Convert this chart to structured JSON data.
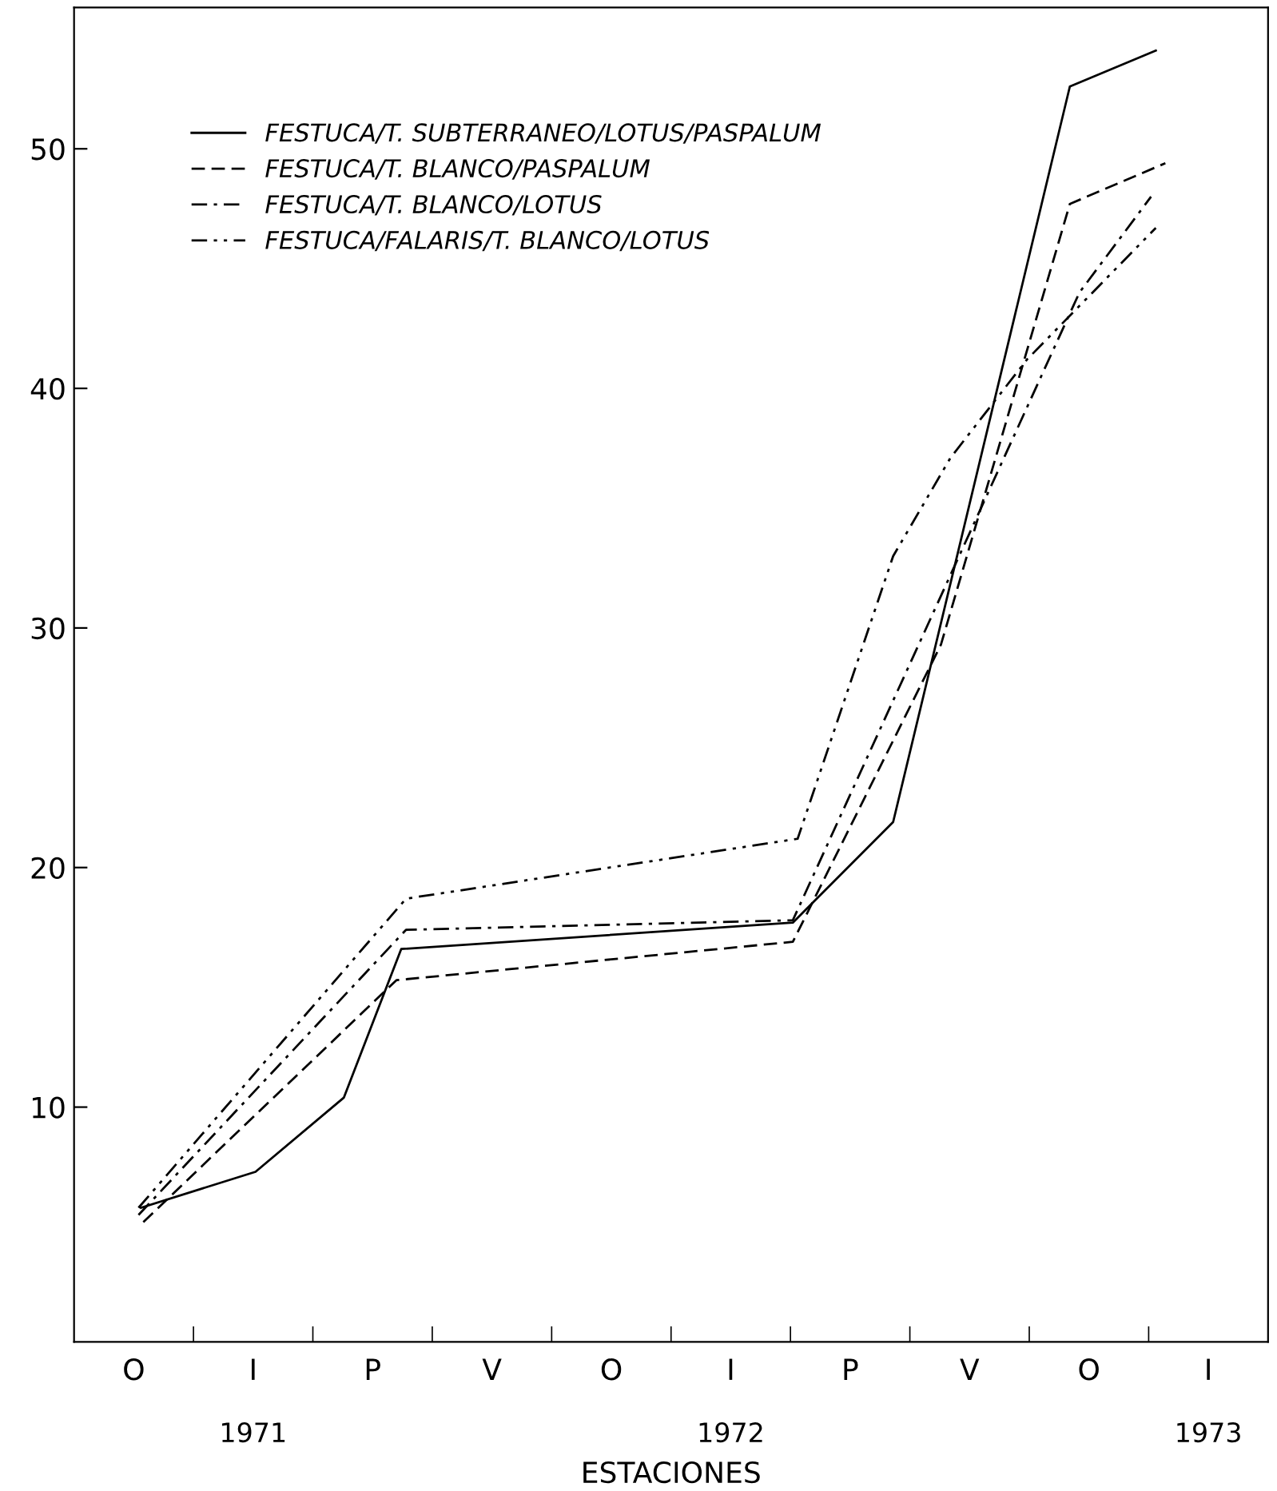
{
  "chart_data": {
    "type": "line",
    "xlabel": "ESTACIONES",
    "annotations": [
      "O",
      "I",
      "P",
      "V",
      "O",
      "I",
      "P",
      "V",
      "O",
      "I"
    ],
    "xlim": [
      1970.625,
      1973.125
    ],
    "ylim": [
      0.2,
      55.9
    ],
    "xticks": [
      {
        "value": 1970.875,
        "label": null
      },
      1971,
      {
        "value": 1971.125,
        "label": null
      },
      {
        "value": 1971.375,
        "label": null
      },
      {
        "value": 1971.625,
        "label": null
      },
      {
        "value": 1971.875,
        "label": null
      },
      1972,
      {
        "value": 1972.125,
        "label": null
      },
      {
        "value": 1972.375,
        "label": null
      },
      {
        "value": 1972.625,
        "label": null
      },
      {
        "value": 1972.875,
        "label": null
      },
      1973
    ],
    "yticks": [
      10,
      20,
      30,
      40,
      50
    ],
    "grid": false,
    "legend": "top left",
    "marker": "none",
    "series": [
      {
        "name": "FESTUCA/T. SUBTERRANEO/LOTUS/PASPALUM",
        "color": "#000000",
        "line_style": "solid",
        "x": [
          1970.765,
          1971.005,
          1971.19,
          1971.31,
          1972.13,
          1972.34,
          1972.71,
          1972.89
        ],
        "values": [
          5.8,
          7.3,
          10.4,
          16.6,
          17.7,
          21.9,
          52.6,
          54.1
        ]
      },
      {
        "name": "FESTUCA/T. BLANCO/PASPALUM",
        "color": "#000000",
        "line_style": "dashed",
        "x": [
          1970.77,
          1971.3,
          1972.13,
          1972.44,
          1972.71,
          1972.91
        ],
        "values": [
          5.2,
          15.3,
          16.9,
          29.3,
          47.7,
          49.4
        ]
      },
      {
        "name": "FESTUCA/T. BLANCO/LOTUS",
        "color": "#000000",
        "line_style": "dashdot",
        "x": [
          1970.76,
          1971.32,
          1972.13,
          1972.73,
          1972.88
        ],
        "values": [
          5.5,
          17.4,
          17.8,
          44.0,
          48.0
        ]
      },
      {
        "name": "FESTUCA/FALARIS/T. BLANCO/LOTUS",
        "color": "#000000",
        "line_style": "dashdotdot",
        "x": [
          1970.76,
          1971.32,
          1972.14,
          1972.34,
          1972.46,
          1972.62,
          1972.89
        ],
        "values": [
          5.8,
          18.7,
          21.2,
          33.0,
          37.1,
          41.2,
          46.7
        ]
      }
    ]
  }
}
